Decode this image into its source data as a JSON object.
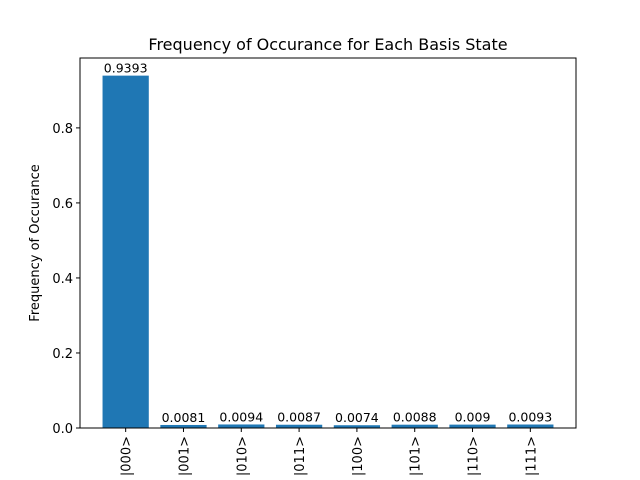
{
  "chart_data": {
    "type": "bar",
    "title": "Frequency of Occurance for Each Basis State",
    "xlabel": "",
    "ylabel": "Frequency of Occurance",
    "categories": [
      "|000>",
      "|001>",
      "|010>",
      "|011>",
      "|100>",
      "|101>",
      "|110>",
      "|111>"
    ],
    "values": [
      0.9393,
      0.0081,
      0.0094,
      0.0087,
      0.0074,
      0.0088,
      0.009,
      0.0093
    ],
    "data_labels": [
      "0.9393",
      "0.0081",
      "0.0094",
      "0.0087",
      "0.0074",
      "0.0088",
      "0.009",
      "0.0093"
    ],
    "ylim": [
      0,
      0.9863
    ],
    "yticks": [
      0.0,
      0.2,
      0.4,
      0.6,
      0.8
    ],
    "ytick_labels": [
      "0.0",
      "0.2",
      "0.4",
      "0.6",
      "0.8"
    ],
    "bar_color": "#1f77b4",
    "grid": false,
    "legend": "none"
  }
}
